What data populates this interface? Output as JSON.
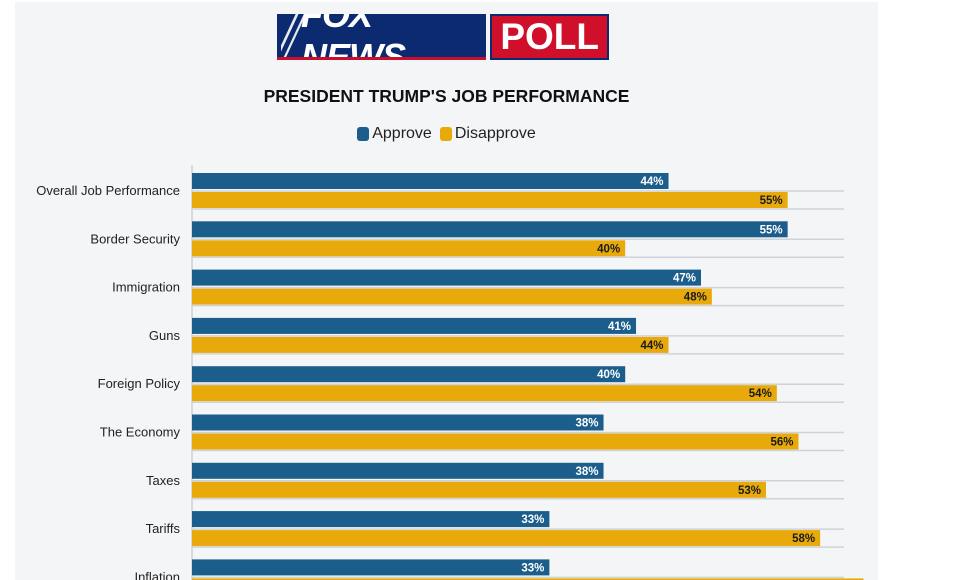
{
  "header": {
    "logo_fox_text": "FOX NEWS",
    "logo_poll_text": "POLL"
  },
  "colors": {
    "approve": "#1b5e8c",
    "disapprove": "#e8a90a",
    "grid": "#cfd3d8",
    "background": "#f4f5f7"
  },
  "chart_data": {
    "type": "bar",
    "orientation": "horizontal",
    "title": "PRESIDENT TRUMP'S JOB PERFORMANCE",
    "legend_position": "top",
    "categories": [
      "Overall Job Performance",
      "Border Security",
      "Immigration",
      "Guns",
      "Foreign Policy",
      "The Economy",
      "Taxes",
      "Tariffs",
      "Inflation"
    ],
    "series": [
      {
        "name": "Approve",
        "values": [
          44,
          55,
          47,
          41,
          40,
          38,
          38,
          33,
          33
        ]
      },
      {
        "name": "Disapprove",
        "values": [
          55,
          40,
          48,
          44,
          54,
          56,
          53,
          58,
          62
        ]
      }
    ],
    "value_suffix": "%",
    "xlim": [
      0,
      60
    ],
    "grid": true
  }
}
